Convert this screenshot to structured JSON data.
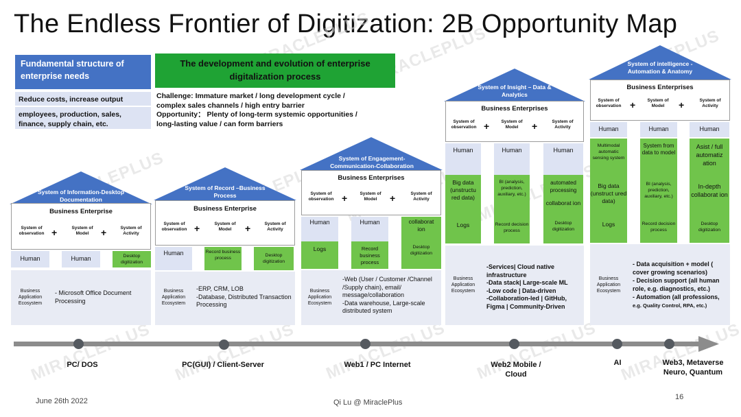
{
  "title": "The Endless Frontier of Digitization: 2B Opportunity Map",
  "watermark": "MIRACLEPLUS",
  "header": {
    "fundamental": "Fundamental structure of enterprise needs",
    "reduce_costs": "Reduce costs, increase output",
    "employees": "employees, production, sales, finance, supply chain, etc.",
    "development": "The development and evolution of enterprise digitalization process",
    "challenge": "Challenge: Immature market / long development cycle / complex sales channels / high entry barrier",
    "opportunity": "Opportunity： Plenty of long-term systemic opportunities / long-lasting value / can form barriers"
  },
  "common": {
    "sys_observation": "System of observation",
    "sys_model": "System of Model",
    "sys_activity": "System of Activity",
    "plus": "+",
    "human": "Human",
    "eco_label": "Business Application Ecosystem"
  },
  "houses": [
    {
      "roof": "System of Information-Desktop Documentation",
      "biz": "Business Enterprise",
      "col3": "Desktop digitization",
      "eco": "- Microsoft Office Document Processing"
    },
    {
      "roof": "System of Record –Business Process",
      "biz": "Business Enterprise",
      "col2": "Record business process",
      "col3": "Desktop digitization",
      "eco": "-ERP, CRM, LOB\n-Database, Distributed Transaction Processing"
    },
    {
      "roof": "System of Engagement-Communication-Collaboration",
      "biz": "Business Enterprises",
      "col1": "Logs",
      "col2": "Record business process",
      "col3_top": "collaborat ion",
      "col3": "Desktop digitization",
      "eco": "-Web (User / Customer /Channel /Supply chain), email/ message/collaboration\n -Data warehouse, Large-scale distributed system"
    },
    {
      "roof": "System of Insight – Data & Analytics",
      "biz": "Business Enterprises",
      "col1_a": "Big data (unstructu red data)",
      "col1_b": "Logs",
      "col2_a": "BI (analysis, prediction, auxiliary, etc.)",
      "col2_b": "Record decision process",
      "col3_a": "automated processing",
      "col3_b": "collaborat ion",
      "col3_c": "Desktop digitization",
      "eco": "-Services| Cloud native infrastructure\n-Data stack| Large-scale ML\n-Low code | Data-driven\n-Collaboration-led | GitHub, Figma | Community-Driven"
    },
    {
      "roof": "System of intelligence - Automation & Anatomy",
      "biz": "Business Enterprises",
      "col1_a": "Multimodal automatic sensing system",
      "col1_b": "Big data (unstruct ured data)",
      "col1_c": "Logs",
      "col2_a": "System from data to model",
      "col2_b": "BI (analysis, prediction, auxiliary, etc.)",
      "col2_c": "Record decision process",
      "col3_a": "Asist / full automatiz ation",
      "col3_b": "In-depth collaborat ion",
      "col3_c": "Desktop digitization",
      "eco_1": "- Data acquisition + model ( cover growing scenarios)",
      "eco_2": "- Decision support  (all human role, e.g. diagnostics, etc.)",
      "eco_3": "- Automation (all professions,",
      "eco_4": "e.g. Quality Control, RPA, etc.)"
    }
  ],
  "timeline": {
    "eras": [
      "PC/ DOS",
      "PC(GUI) / Client-Server",
      "Web1 / PC Internet",
      "Web2 Mobile / Cloud",
      "AI",
      "Web3,  Metaverse Neuro, Quantum"
    ]
  },
  "footer": {
    "date": "June 26th 2022",
    "author": "Qi Lu @ MiraclePlus",
    "page": "16"
  },
  "colors": {
    "blue": "#4472c4",
    "green": "#70c44b",
    "dark_green": "#1fa334",
    "lavender": "#dde3f3",
    "timeline": "#8c8c8c"
  }
}
